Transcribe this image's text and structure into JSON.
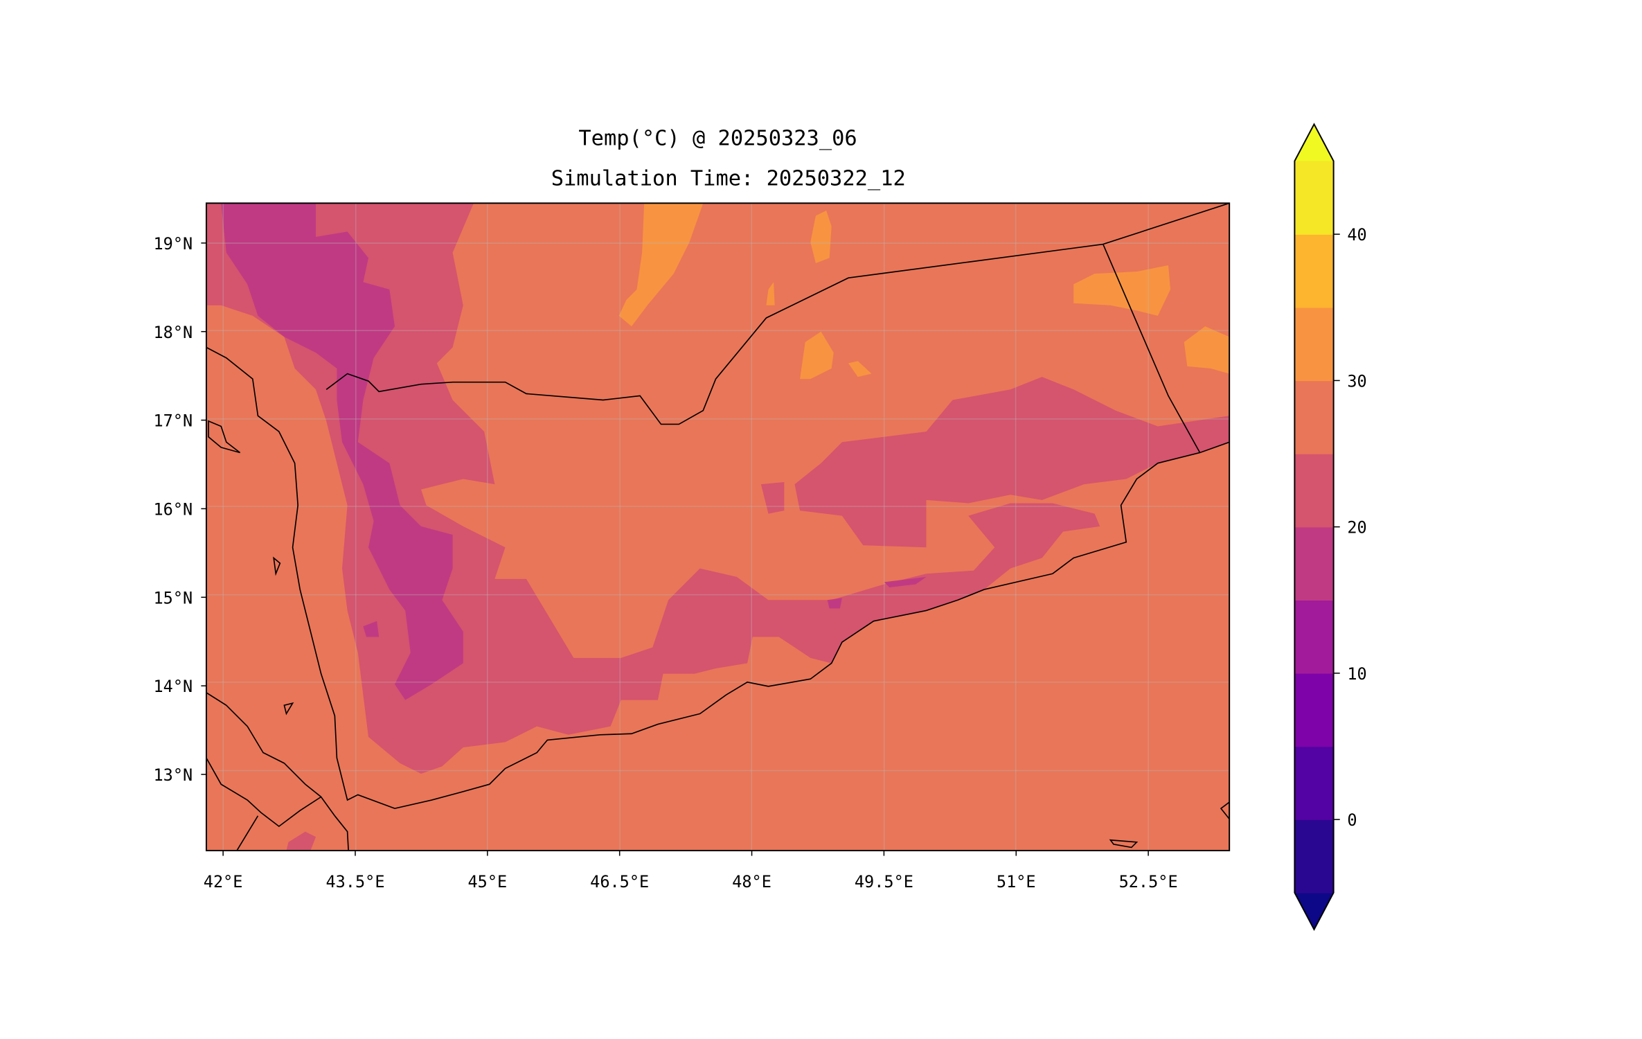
{
  "title_line1": "Temp(°C) @ 20250323_06",
  "title_line2": "Simulation Time: 20250322_12",
  "chart_data": {
    "type": "heatmap",
    "variable": "Temp(°C)",
    "lon_range": [
      41.81,
      53.42
    ],
    "lat_range": [
      12.14,
      19.45
    ],
    "x_ticks": [
      {
        "value": 42,
        "label": "42°E"
      },
      {
        "value": 43.5,
        "label": "43.5°E"
      },
      {
        "value": 45,
        "label": "45°E"
      },
      {
        "value": 46.5,
        "label": "46.5°E"
      },
      {
        "value": 48,
        "label": "48°E"
      },
      {
        "value": 49.5,
        "label": "49.5°E"
      },
      {
        "value": 51,
        "label": "51°E"
      },
      {
        "value": 52.5,
        "label": "52.5°E"
      }
    ],
    "y_ticks": [
      {
        "value": 19,
        "label": "19°N"
      },
      {
        "value": 18,
        "label": "18°N"
      },
      {
        "value": 17,
        "label": "17°N"
      },
      {
        "value": 16,
        "label": "16°N"
      },
      {
        "value": 15,
        "label": "15°N"
      },
      {
        "value": 14,
        "label": "14°N"
      },
      {
        "value": 13,
        "label": "13°N"
      }
    ],
    "grid": true,
    "colorbar": {
      "extend": "both",
      "levels": [
        -5,
        0,
        5,
        10,
        15,
        20,
        25,
        30,
        35,
        40,
        45
      ],
      "colors": [
        "#2a0791",
        "#5302a3",
        "#7e03a8",
        "#a11b9b",
        "#c03a83",
        "#d5546e",
        "#e97658",
        "#f89441",
        "#fdb42f",
        "#f5e626"
      ],
      "under_color": "#0d0887",
      "over_color": "#f0f921",
      "ticks": [
        {
          "value": 0,
          "label": "0"
        },
        {
          "value": 10,
          "label": "10"
        },
        {
          "value": 20,
          "label": "20"
        },
        {
          "value": 30,
          "label": "30"
        },
        {
          "value": 40,
          "label": "40"
        }
      ]
    }
  }
}
